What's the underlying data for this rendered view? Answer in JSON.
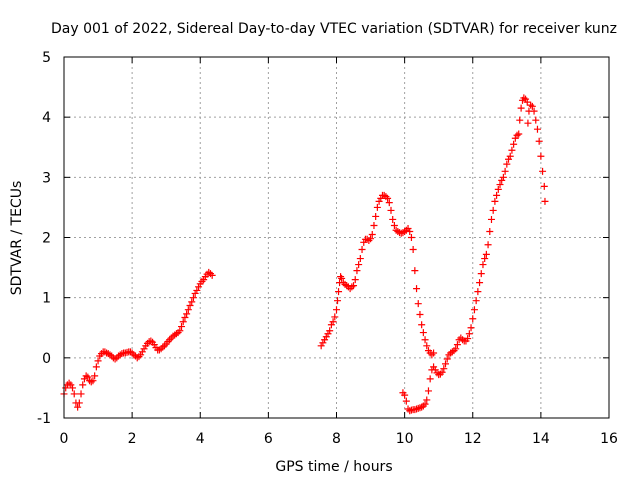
{
  "chart_data": {
    "type": "scatter",
    "title": "Day 001 of 2022, Sidereal Day-to-day VTEC variation (SDTVAR) for receiver kunz",
    "xlabel": "GPS time / hours",
    "ylabel": "SDTVAR / TECUs",
    "xlim": [
      0,
      16
    ],
    "ylim": [
      -1,
      5
    ],
    "xticks": [
      0,
      2,
      4,
      6,
      8,
      10,
      12,
      14,
      16
    ],
    "yticks": [
      -1,
      0,
      1,
      2,
      3,
      4,
      5
    ],
    "grid": true,
    "marker": "plus",
    "color": "#ff0000",
    "segments": [
      [
        [
          0.0,
          -0.6
        ],
        [
          0.05,
          -0.5
        ],
        [
          0.1,
          -0.45
        ],
        [
          0.15,
          -0.42
        ],
        [
          0.2,
          -0.45
        ],
        [
          0.25,
          -0.5
        ],
        [
          0.3,
          -0.6
        ],
        [
          0.35,
          -0.75
        ],
        [
          0.4,
          -0.82
        ],
        [
          0.45,
          -0.75
        ],
        [
          0.5,
          -0.6
        ],
        [
          0.55,
          -0.45
        ],
        [
          0.6,
          -0.35
        ],
        [
          0.65,
          -0.3
        ],
        [
          0.7,
          -0.32
        ],
        [
          0.75,
          -0.38
        ],
        [
          0.8,
          -0.4
        ],
        [
          0.85,
          -0.38
        ],
        [
          0.9,
          -0.3
        ],
        [
          0.95,
          -0.15
        ],
        [
          1.0,
          -0.05
        ],
        [
          1.05,
          0.03
        ],
        [
          1.1,
          0.07
        ],
        [
          1.15,
          0.1
        ],
        [
          1.2,
          0.1
        ],
        [
          1.25,
          0.08
        ],
        [
          1.3,
          0.07
        ],
        [
          1.35,
          0.05
        ],
        [
          1.4,
          0.03
        ],
        [
          1.45,
          0.0
        ],
        [
          1.5,
          -0.02
        ],
        [
          1.55,
          0.0
        ],
        [
          1.6,
          0.03
        ],
        [
          1.65,
          0.05
        ],
        [
          1.7,
          0.07
        ],
        [
          1.75,
          0.08
        ],
        [
          1.8,
          0.08
        ],
        [
          1.85,
          0.09
        ],
        [
          1.9,
          0.1
        ],
        [
          1.95,
          0.1
        ],
        [
          2.0,
          0.08
        ],
        [
          2.05,
          0.05
        ],
        [
          2.1,
          0.03
        ],
        [
          2.15,
          0.0
        ],
        [
          2.2,
          0.02
        ],
        [
          2.25,
          0.05
        ],
        [
          2.3,
          0.1
        ],
        [
          2.35,
          0.15
        ],
        [
          2.4,
          0.2
        ],
        [
          2.45,
          0.24
        ],
        [
          2.5,
          0.27
        ],
        [
          2.55,
          0.28
        ],
        [
          2.6,
          0.26
        ],
        [
          2.65,
          0.22
        ],
        [
          2.7,
          0.17
        ],
        [
          2.75,
          0.13
        ],
        [
          2.8,
          0.13
        ],
        [
          2.85,
          0.15
        ],
        [
          2.9,
          0.18
        ],
        [
          2.95,
          0.2
        ],
        [
          3.0,
          0.23
        ],
        [
          3.05,
          0.27
        ],
        [
          3.1,
          0.3
        ],
        [
          3.15,
          0.33
        ],
        [
          3.2,
          0.36
        ],
        [
          3.25,
          0.38
        ],
        [
          3.3,
          0.4
        ],
        [
          3.35,
          0.42
        ],
        [
          3.4,
          0.45
        ],
        [
          3.45,
          0.52
        ],
        [
          3.5,
          0.6
        ],
        [
          3.55,
          0.67
        ],
        [
          3.6,
          0.73
        ],
        [
          3.65,
          0.8
        ],
        [
          3.7,
          0.87
        ],
        [
          3.75,
          0.93
        ],
        [
          3.8,
          1.0
        ],
        [
          3.85,
          1.07
        ],
        [
          3.9,
          1.12
        ],
        [
          3.95,
          1.18
        ],
        [
          4.0,
          1.23
        ],
        [
          4.05,
          1.27
        ],
        [
          4.1,
          1.3
        ],
        [
          4.15,
          1.35
        ],
        [
          4.2,
          1.39
        ],
        [
          4.25,
          1.42
        ],
        [
          4.3,
          1.4
        ],
        [
          4.35,
          1.37
        ]
      ],
      [
        [
          7.55,
          0.2
        ],
        [
          7.6,
          0.25
        ],
        [
          7.65,
          0.3
        ],
        [
          7.7,
          0.35
        ],
        [
          7.75,
          0.4
        ],
        [
          7.8,
          0.45
        ],
        [
          7.85,
          0.55
        ],
        [
          7.9,
          0.6
        ],
        [
          7.95,
          0.68
        ],
        [
          8.0,
          0.8
        ],
        [
          8.03,
          0.95
        ],
        [
          8.06,
          1.1
        ],
        [
          8.09,
          1.25
        ],
        [
          8.12,
          1.35
        ],
        [
          8.15,
          1.32
        ],
        [
          8.2,
          1.25
        ],
        [
          8.25,
          1.22
        ],
        [
          8.3,
          1.2
        ],
        [
          8.35,
          1.18
        ],
        [
          8.4,
          1.15
        ],
        [
          8.45,
          1.18
        ],
        [
          8.5,
          1.2
        ],
        [
          8.55,
          1.3
        ],
        [
          8.6,
          1.45
        ],
        [
          8.65,
          1.55
        ],
        [
          8.7,
          1.65
        ],
        [
          8.75,
          1.8
        ],
        [
          8.8,
          1.92
        ],
        [
          8.85,
          1.97
        ],
        [
          8.9,
          1.97
        ],
        [
          8.95,
          1.95
        ],
        [
          9.0,
          1.98
        ],
        [
          9.05,
          2.05
        ],
        [
          9.1,
          2.2
        ],
        [
          9.15,
          2.35
        ],
        [
          9.2,
          2.5
        ],
        [
          9.25,
          2.6
        ],
        [
          9.3,
          2.65
        ],
        [
          9.35,
          2.7
        ],
        [
          9.4,
          2.7
        ],
        [
          9.45,
          2.68
        ],
        [
          9.5,
          2.65
        ],
        [
          9.55,
          2.58
        ],
        [
          9.6,
          2.45
        ],
        [
          9.65,
          2.3
        ],
        [
          9.7,
          2.2
        ],
        [
          9.75,
          2.12
        ],
        [
          9.8,
          2.1
        ],
        [
          9.85,
          2.08
        ],
        [
          9.9,
          2.07
        ],
        [
          9.95,
          2.08
        ],
        [
          10.0,
          2.1
        ],
        [
          10.05,
          2.12
        ],
        [
          10.1,
          2.15
        ],
        [
          10.15,
          2.1
        ],
        [
          10.2,
          2.0
        ],
        [
          10.25,
          1.8
        ],
        [
          10.3,
          1.45
        ],
        [
          10.35,
          1.15
        ],
        [
          10.4,
          0.9
        ],
        [
          10.45,
          0.72
        ],
        [
          10.5,
          0.55
        ],
        [
          10.55,
          0.42
        ],
        [
          10.6,
          0.3
        ],
        [
          10.65,
          0.2
        ],
        [
          10.7,
          0.12
        ],
        [
          10.75,
          0.08
        ],
        [
          10.8,
          0.05
        ],
        [
          10.85,
          0.08
        ]
      ],
      [
        [
          9.95,
          -0.58
        ],
        [
          10.0,
          -0.62
        ],
        [
          10.05,
          -0.72
        ],
        [
          10.1,
          -0.85
        ],
        [
          10.15,
          -0.88
        ],
        [
          10.2,
          -0.87
        ],
        [
          10.25,
          -0.86
        ],
        [
          10.3,
          -0.86
        ],
        [
          10.35,
          -0.85
        ],
        [
          10.4,
          -0.84
        ],
        [
          10.45,
          -0.83
        ],
        [
          10.5,
          -0.82
        ],
        [
          10.55,
          -0.8
        ],
        [
          10.6,
          -0.77
        ],
        [
          10.65,
          -0.7
        ],
        [
          10.7,
          -0.55
        ],
        [
          10.75,
          -0.35
        ],
        [
          10.8,
          -0.2
        ],
        [
          10.85,
          -0.15
        ],
        [
          10.9,
          -0.2
        ],
        [
          10.95,
          -0.25
        ],
        [
          11.0,
          -0.28
        ],
        [
          11.05,
          -0.27
        ],
        [
          11.1,
          -0.24
        ],
        [
          11.15,
          -0.18
        ],
        [
          11.2,
          -0.1
        ],
        [
          11.25,
          -0.02
        ],
        [
          11.3,
          0.05
        ],
        [
          11.35,
          0.08
        ],
        [
          11.4,
          0.1
        ],
        [
          11.45,
          0.12
        ],
        [
          11.5,
          0.15
        ],
        [
          11.55,
          0.22
        ],
        [
          11.6,
          0.3
        ],
        [
          11.65,
          0.33
        ],
        [
          11.7,
          0.3
        ],
        [
          11.75,
          0.28
        ],
        [
          11.8,
          0.28
        ],
        [
          11.85,
          0.32
        ],
        [
          11.9,
          0.4
        ],
        [
          11.95,
          0.5
        ],
        [
          12.0,
          0.65
        ],
        [
          12.05,
          0.8
        ],
        [
          12.1,
          0.95
        ],
        [
          12.15,
          1.1
        ],
        [
          12.2,
          1.25
        ],
        [
          12.25,
          1.4
        ],
        [
          12.3,
          1.55
        ],
        [
          12.35,
          1.65
        ],
        [
          12.4,
          1.72
        ],
        [
          12.45,
          1.88
        ],
        [
          12.5,
          2.1
        ],
        [
          12.55,
          2.3
        ],
        [
          12.6,
          2.45
        ],
        [
          12.65,
          2.6
        ],
        [
          12.7,
          2.7
        ],
        [
          12.75,
          2.8
        ],
        [
          12.8,
          2.88
        ],
        [
          12.85,
          2.95
        ],
        [
          12.9,
          3.0
        ],
        [
          12.95,
          3.1
        ],
        [
          13.0,
          3.22
        ],
        [
          13.05,
          3.3
        ],
        [
          13.1,
          3.35
        ],
        [
          13.15,
          3.45
        ],
        [
          13.2,
          3.55
        ],
        [
          13.25,
          3.65
        ],
        [
          13.3,
          3.7
        ],
        [
          13.35,
          3.72
        ],
        [
          13.38,
          3.95
        ],
        [
          13.42,
          4.15
        ],
        [
          13.46,
          4.28
        ],
        [
          13.5,
          4.32
        ],
        [
          13.55,
          4.3
        ],
        [
          13.6,
          4.25
        ],
        [
          13.62,
          3.9
        ],
        [
          13.65,
          4.1
        ],
        [
          13.7,
          4.2
        ],
        [
          13.75,
          4.18
        ],
        [
          13.8,
          4.1
        ],
        [
          13.85,
          3.95
        ],
        [
          13.9,
          3.8
        ],
        [
          13.95,
          3.6
        ],
        [
          14.0,
          3.35
        ],
        [
          14.05,
          3.1
        ],
        [
          14.1,
          2.85
        ],
        [
          14.12,
          2.6
        ]
      ]
    ]
  }
}
